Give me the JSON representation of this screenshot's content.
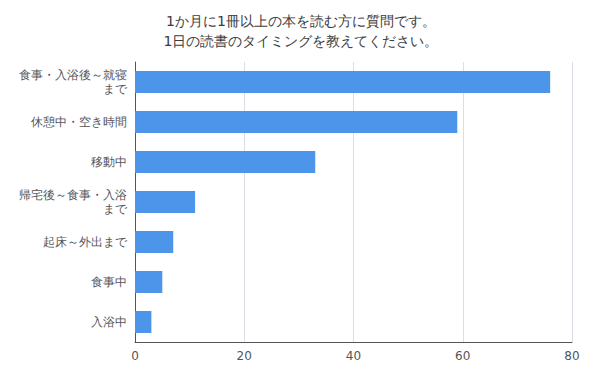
{
  "chart_data": {
    "type": "bar",
    "orientation": "horizontal",
    "title": "1か月に1冊以上の本を読む方に質問です。\n1日の読書のタイミングを教えてください。",
    "categories": [
      "入浴中",
      "食事中",
      "起床～外出まで",
      "帰宅後～食事・入浴\nまで",
      "移動中",
      "休憩中・空き時間",
      "食事・入浴後～就寝\nまで"
    ],
    "values": [
      3,
      5,
      7,
      11,
      33,
      59,
      76
    ],
    "color": "#4d94eb",
    "xlim": [
      0,
      80
    ],
    "xticks": [
      0,
      20,
      40,
      60,
      80
    ],
    "grid": true
  }
}
